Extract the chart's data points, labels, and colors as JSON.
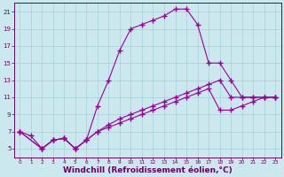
{
  "background_color": "#cbe8ee",
  "grid_color": "#aad4dc",
  "line_color": "#990099",
  "marker": "+",
  "xlabel": "Windchill (Refroidissement éolien,°C)",
  "xlabel_fontsize": 6.5,
  "ylim": [
    4,
    22
  ],
  "xlim": [
    -0.5,
    23.5
  ],
  "xticks": [
    0,
    1,
    2,
    3,
    4,
    5,
    6,
    7,
    8,
    9,
    10,
    11,
    12,
    13,
    14,
    15,
    16,
    17,
    18,
    19,
    20,
    21,
    22,
    23
  ],
  "yticks": [
    5,
    7,
    9,
    11,
    13,
    15,
    17,
    19,
    21
  ],
  "curve1_x": [
    0,
    1,
    2,
    3,
    4,
    5,
    6,
    7,
    8,
    9,
    10,
    11,
    12,
    13,
    14,
    15,
    16,
    17,
    18,
    19,
    20,
    21,
    22,
    23
  ],
  "curve1_y": [
    7,
    6.5,
    5.0,
    6.0,
    6.2,
    5.0,
    6.0,
    10.0,
    13.0,
    16.5,
    19.0,
    19.5,
    20.0,
    20.5,
    21.3,
    21.3,
    19.5,
    15.0,
    15.0,
    13.0,
    11.0,
    11.0,
    11.0,
    11.0
  ],
  "curve2_x": [
    0,
    2,
    3,
    4,
    5,
    6,
    7,
    8,
    9,
    10,
    11,
    12,
    13,
    14,
    15,
    16,
    17,
    18,
    19,
    20,
    21,
    22,
    23
  ],
  "curve2_y": [
    7,
    5.0,
    6.0,
    6.2,
    5.0,
    6.0,
    7.0,
    7.8,
    8.5,
    9.0,
    9.5,
    10.0,
    10.5,
    11.0,
    11.5,
    12.0,
    12.5,
    13.0,
    11.0,
    11.0,
    11.0,
    11.0,
    11.0
  ],
  "curve3_x": [
    0,
    2,
    3,
    4,
    5,
    6,
    7,
    8,
    9,
    10,
    11,
    12,
    13,
    14,
    15,
    16,
    17,
    18,
    19,
    20,
    21,
    22,
    23
  ],
  "curve3_y": [
    7,
    5.0,
    6.0,
    6.2,
    5.0,
    6.0,
    7.0,
    7.5,
    8.0,
    8.5,
    9.0,
    9.5,
    10.0,
    10.5,
    11.0,
    11.5,
    12.0,
    9.5,
    9.5,
    10.0,
    10.5,
    11.0,
    11.0
  ]
}
